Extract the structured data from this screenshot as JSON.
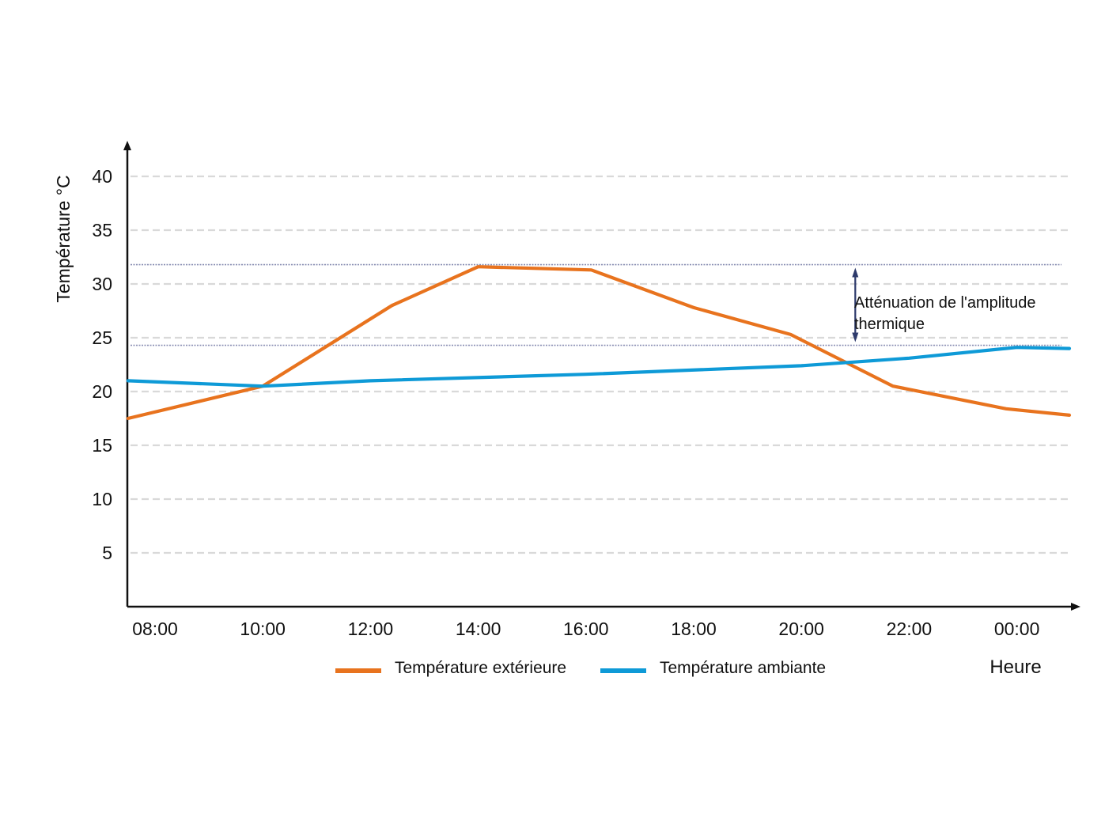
{
  "chart_data": {
    "type": "line",
    "title": "",
    "ylabel": "Température °C",
    "xlabel": "Heure",
    "ylim": [
      0,
      42
    ],
    "y_ticks": [
      5,
      10,
      15,
      20,
      25,
      30,
      35,
      40
    ],
    "y_tick_labels": [
      "5",
      "10",
      "15",
      "20",
      "25",
      "30",
      "35",
      "40"
    ],
    "categories": [
      "08:00",
      "10:00",
      "12:00",
      "14:00",
      "16:00",
      "18:00",
      "20:00",
      "22:00",
      "00:00"
    ],
    "grid": true,
    "legend_position": "bottom",
    "series": [
      {
        "name": "Température extérieure",
        "color": "#E8731E",
        "x": [
          7.5,
          10,
          12.4,
          14,
          16.1,
          18,
          19.8,
          21.7,
          23.8,
          25.5
        ],
        "values": [
          17.5,
          20.5,
          28,
          31.6,
          31.3,
          27.8,
          25.3,
          20.5,
          18.4,
          17.8
        ]
      },
      {
        "name": "Température ambiante",
        "color": "#0E9AD7",
        "x": [
          7.5,
          10,
          12,
          16,
          20,
          22,
          24,
          25.5
        ],
        "values": [
          21,
          20.5,
          21,
          21.6,
          22.4,
          23.1,
          24.1,
          24
        ]
      }
    ],
    "annotation": {
      "text_lines": [
        "Atténuation de l'amplitude",
        "thermique"
      ],
      "y_top": 31.8,
      "y_bottom": 24.3,
      "x_arrow": 21.0,
      "color": "#2D3A6B"
    }
  }
}
